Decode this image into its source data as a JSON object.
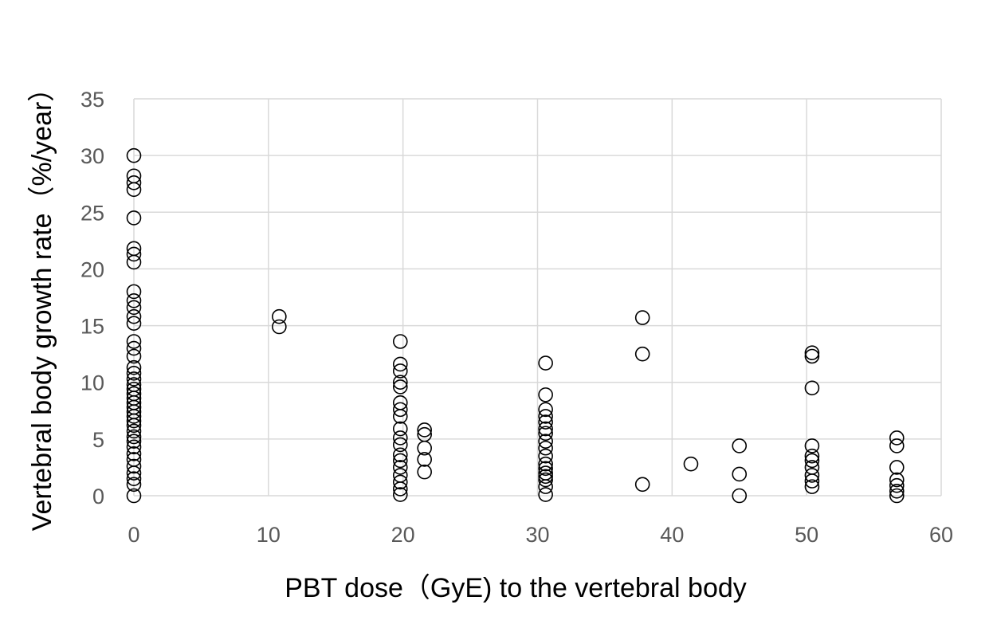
{
  "chart_data": {
    "type": "scatter",
    "title": "",
    "xlabel": "PBT dose（GyE) to the vertebral body",
    "ylabel": "Vertebral body growth rate（%/year）",
    "xlim": [
      0,
      60
    ],
    "ylim": [
      0,
      35
    ],
    "x_ticks": [
      "0",
      "10",
      "20",
      "30",
      "40",
      "50",
      "60"
    ],
    "y_ticks": [
      "0",
      "5",
      "10",
      "15",
      "20",
      "25",
      "30",
      "35"
    ],
    "grid": true,
    "legend": "none",
    "marker": "open-circle",
    "series": [
      {
        "points": [
          [
            0,
            30.0
          ],
          [
            0,
            28.2
          ],
          [
            0,
            27.6
          ],
          [
            0,
            27.0
          ],
          [
            0,
            24.5
          ],
          [
            0,
            21.8
          ],
          [
            0,
            21.3
          ],
          [
            0,
            20.6
          ],
          [
            0,
            18.0
          ],
          [
            0,
            17.2
          ],
          [
            0,
            16.6
          ],
          [
            0,
            15.8
          ],
          [
            0,
            15.2
          ],
          [
            0,
            13.6
          ],
          [
            0,
            13.0
          ],
          [
            0,
            12.3
          ],
          [
            0,
            11.3
          ],
          [
            0,
            10.8
          ],
          [
            0,
            10.3
          ],
          [
            0,
            9.8
          ],
          [
            0,
            9.4
          ],
          [
            0,
            9.0
          ],
          [
            0,
            8.6
          ],
          [
            0,
            8.2
          ],
          [
            0,
            7.8
          ],
          [
            0,
            7.4
          ],
          [
            0,
            7.0
          ],
          [
            0,
            6.6
          ],
          [
            0,
            6.2
          ],
          [
            0,
            5.7
          ],
          [
            0,
            5.2
          ],
          [
            0,
            4.8
          ],
          [
            0,
            4.3
          ],
          [
            0,
            3.7
          ],
          [
            0,
            3.2
          ],
          [
            0,
            2.6
          ],
          [
            0,
            2.0
          ],
          [
            0,
            1.5
          ],
          [
            0,
            1.0
          ],
          [
            0,
            0.0
          ],
          [
            10.8,
            15.8
          ],
          [
            10.8,
            14.9
          ],
          [
            19.8,
            13.6
          ],
          [
            19.8,
            11.6
          ],
          [
            19.8,
            11.0
          ],
          [
            19.8,
            10.0
          ],
          [
            19.8,
            9.6
          ],
          [
            19.8,
            8.2
          ],
          [
            19.8,
            7.6
          ],
          [
            19.8,
            7.0
          ],
          [
            19.8,
            5.9
          ],
          [
            19.8,
            5.1
          ],
          [
            19.8,
            4.5
          ],
          [
            19.8,
            3.6
          ],
          [
            19.8,
            3.1
          ],
          [
            19.8,
            2.5
          ],
          [
            19.8,
            1.8
          ],
          [
            19.8,
            1.2
          ],
          [
            19.8,
            0.6
          ],
          [
            19.8,
            0.1
          ],
          [
            21.6,
            5.8
          ],
          [
            21.6,
            5.4
          ],
          [
            21.6,
            4.2
          ],
          [
            21.6,
            3.2
          ],
          [
            21.6,
            2.1
          ],
          [
            30.6,
            11.7
          ],
          [
            30.6,
            8.9
          ],
          [
            30.6,
            7.6
          ],
          [
            30.6,
            7.0
          ],
          [
            30.6,
            6.5
          ],
          [
            30.6,
            5.9
          ],
          [
            30.6,
            5.5
          ],
          [
            30.6,
            4.8
          ],
          [
            30.6,
            4.2
          ],
          [
            30.6,
            3.5
          ],
          [
            30.6,
            2.8
          ],
          [
            30.6,
            2.4
          ],
          [
            30.6,
            2.0
          ],
          [
            30.6,
            1.7
          ],
          [
            30.6,
            1.4
          ],
          [
            30.6,
            0.8
          ],
          [
            30.6,
            0.1
          ],
          [
            37.8,
            15.7
          ],
          [
            37.8,
            12.5
          ],
          [
            37.8,
            1.0
          ],
          [
            41.4,
            2.8
          ],
          [
            45.0,
            4.4
          ],
          [
            45.0,
            1.9
          ],
          [
            45.0,
            0.0
          ],
          [
            50.4,
            12.6
          ],
          [
            50.4,
            12.3
          ],
          [
            50.4,
            9.5
          ],
          [
            50.4,
            4.4
          ],
          [
            50.4,
            3.5
          ],
          [
            50.4,
            3.1
          ],
          [
            50.4,
            2.5
          ],
          [
            50.4,
            1.8
          ],
          [
            50.4,
            1.3
          ],
          [
            50.4,
            0.8
          ],
          [
            56.7,
            5.1
          ],
          [
            56.7,
            4.4
          ],
          [
            56.7,
            2.5
          ],
          [
            56.7,
            1.4
          ],
          [
            56.7,
            0.9
          ],
          [
            56.7,
            0.4
          ],
          [
            56.7,
            0.0
          ]
        ]
      }
    ]
  }
}
